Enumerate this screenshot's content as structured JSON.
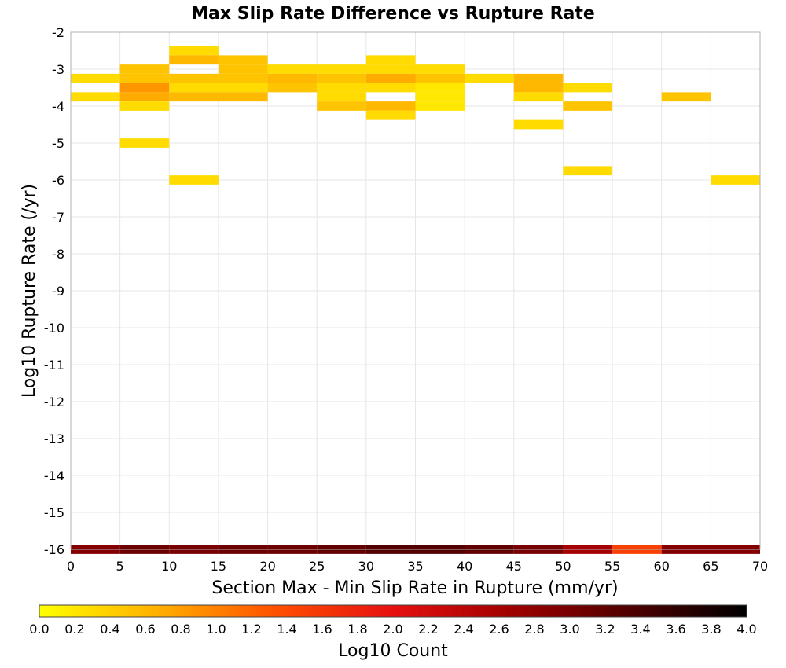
{
  "chart_data": {
    "type": "heatmap",
    "title": "Max Slip Rate Difference vs Rupture Rate",
    "xlabel": "Section Max - Min Slip Rate in Rupture (mm/yr)",
    "ylabel": "Log10 Rupture Rate (/yr)",
    "xlim": [
      0,
      70
    ],
    "ylim": [
      -16,
      -2
    ],
    "x_ticks": [
      "0",
      "5",
      "10",
      "15",
      "20",
      "25",
      "30",
      "35",
      "40",
      "45",
      "50",
      "55",
      "60",
      "65",
      "70"
    ],
    "y_ticks": [
      "-2",
      "-3",
      "-4",
      "-5",
      "-6",
      "-7",
      "-8",
      "-9",
      "-10",
      "-11",
      "-12",
      "-13",
      "-14",
      "-15",
      "-16"
    ],
    "grid": true,
    "cell_width": 5,
    "cell_height": 0.25,
    "colorbar": {
      "label": "Log10 Count",
      "min": 0.0,
      "max": 4.0,
      "ticks": [
        "0.0",
        "0.2",
        "0.4",
        "0.6",
        "0.8",
        "1.0",
        "1.2",
        "1.4",
        "1.6",
        "1.8",
        "2.0",
        "2.2",
        "2.4",
        "2.6",
        "2.8",
        "3.0",
        "3.2",
        "3.4",
        "3.6",
        "3.8",
        "4.0"
      ],
      "colors": [
        "#ffff00",
        "#ffb000",
        "#ff5000",
        "#e61010",
        "#a00000",
        "#500000",
        "#000000"
      ]
    },
    "cells": [
      {
        "x": 10,
        "y": -2.5,
        "v": 0.3
      },
      {
        "x": 10,
        "y": -2.75,
        "v": 0.6
      },
      {
        "x": 15,
        "y": -2.75,
        "v": 0.5
      },
      {
        "x": 30,
        "y": -2.75,
        "v": 0.3
      },
      {
        "x": 5,
        "y": -3.0,
        "v": 0.5
      },
      {
        "x": 15,
        "y": -3.0,
        "v": 0.5
      },
      {
        "x": 20,
        "y": -3.0,
        "v": 0.3
      },
      {
        "x": 25,
        "y": -3.0,
        "v": 0.3
      },
      {
        "x": 30,
        "y": -3.0,
        "v": 0.3
      },
      {
        "x": 35,
        "y": -3.0,
        "v": 0.3
      },
      {
        "x": 0,
        "y": -3.25,
        "v": 0.3
      },
      {
        "x": 5,
        "y": -3.25,
        "v": 0.5
      },
      {
        "x": 10,
        "y": -3.25,
        "v": 0.5
      },
      {
        "x": 15,
        "y": -3.25,
        "v": 0.5
      },
      {
        "x": 20,
        "y": -3.25,
        "v": 0.6
      },
      {
        "x": 25,
        "y": -3.25,
        "v": 0.5
      },
      {
        "x": 30,
        "y": -3.25,
        "v": 0.7
      },
      {
        "x": 35,
        "y": -3.25,
        "v": 0.5
      },
      {
        "x": 40,
        "y": -3.25,
        "v": 0.3
      },
      {
        "x": 45,
        "y": -3.25,
        "v": 0.6
      },
      {
        "x": 5,
        "y": -3.5,
        "v": 0.85
      },
      {
        "x": 10,
        "y": -3.5,
        "v": 0.3
      },
      {
        "x": 15,
        "y": -3.5,
        "v": 0.3
      },
      {
        "x": 20,
        "y": -3.5,
        "v": 0.5
      },
      {
        "x": 25,
        "y": -3.5,
        "v": 0.3
      },
      {
        "x": 30,
        "y": -3.5,
        "v": 0.3
      },
      {
        "x": 35,
        "y": -3.5,
        "v": 0.2
      },
      {
        "x": 45,
        "y": -3.5,
        "v": 0.6
      },
      {
        "x": 50,
        "y": -3.5,
        "v": 0.3
      },
      {
        "x": 0,
        "y": -3.75,
        "v": 0.3
      },
      {
        "x": 5,
        "y": -3.75,
        "v": 0.7
      },
      {
        "x": 10,
        "y": -3.75,
        "v": 0.6
      },
      {
        "x": 15,
        "y": -3.75,
        "v": 0.6
      },
      {
        "x": 25,
        "y": -3.75,
        "v": 0.3
      },
      {
        "x": 35,
        "y": -3.75,
        "v": 0.2
      },
      {
        "x": 45,
        "y": -3.75,
        "v": 0.3
      },
      {
        "x": 60,
        "y": -3.75,
        "v": 0.5
      },
      {
        "x": 5,
        "y": -4.0,
        "v": 0.3
      },
      {
        "x": 25,
        "y": -4.0,
        "v": 0.5
      },
      {
        "x": 30,
        "y": -4.0,
        "v": 0.6
      },
      {
        "x": 35,
        "y": -4.0,
        "v": 0.2
      },
      {
        "x": 50,
        "y": -4.0,
        "v": 0.5
      },
      {
        "x": 30,
        "y": -4.25,
        "v": 0.3
      },
      {
        "x": 45,
        "y": -4.5,
        "v": 0.3
      },
      {
        "x": 5,
        "y": -5.0,
        "v": 0.3
      },
      {
        "x": 50,
        "y": -5.75,
        "v": 0.3
      },
      {
        "x": 10,
        "y": -6.0,
        "v": 0.3
      },
      {
        "x": 65,
        "y": -6.0,
        "v": 0.3
      },
      {
        "x": 0,
        "y": -16.0,
        "v": 2.9
      },
      {
        "x": 5,
        "y": -16.0,
        "v": 3.1
      },
      {
        "x": 10,
        "y": -16.0,
        "v": 3.0
      },
      {
        "x": 15,
        "y": -16.0,
        "v": 3.1
      },
      {
        "x": 20,
        "y": -16.0,
        "v": 3.1
      },
      {
        "x": 25,
        "y": -16.0,
        "v": 3.2
      },
      {
        "x": 30,
        "y": -16.0,
        "v": 3.3
      },
      {
        "x": 35,
        "y": -16.0,
        "v": 3.3
      },
      {
        "x": 40,
        "y": -16.0,
        "v": 3.2
      },
      {
        "x": 45,
        "y": -16.0,
        "v": 3.0
      },
      {
        "x": 50,
        "y": -16.0,
        "v": 2.6
      },
      {
        "x": 55,
        "y": -16.0,
        "v": 1.5
      },
      {
        "x": 60,
        "y": -16.0,
        "v": 2.9
      },
      {
        "x": 65,
        "y": -16.0,
        "v": 2.9
      }
    ]
  }
}
